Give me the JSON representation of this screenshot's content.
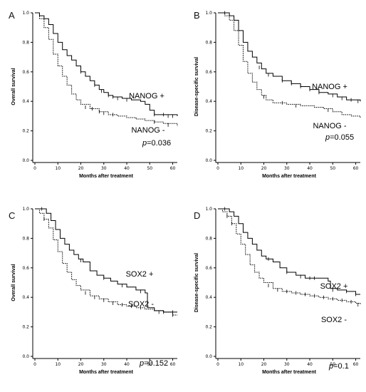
{
  "chart_data": [
    {
      "panel": "A",
      "type": "line",
      "xlabel": "Months after treatment",
      "ylabel": "Overall survival",
      "xlim": [
        0,
        62
      ],
      "ylim": [
        0,
        1.0
      ],
      "xticks": [
        0,
        10,
        20,
        30,
        40,
        50,
        60
      ],
      "yticks": [
        "0.0",
        "0.2",
        "0.4",
        "0.6",
        "0.8",
        "1.0"
      ],
      "p_value": "=0.036",
      "series": [
        {
          "name": "NANOG +",
          "style": "solid",
          "points": [
            [
              0,
              1.0
            ],
            [
              2,
              0.98
            ],
            [
              4,
              0.96
            ],
            [
              6,
              0.92
            ],
            [
              8,
              0.86
            ],
            [
              10,
              0.8
            ],
            [
              12,
              0.75
            ],
            [
              14,
              0.71
            ],
            [
              16,
              0.68
            ],
            [
              18,
              0.64
            ],
            [
              20,
              0.6
            ],
            [
              22,
              0.57
            ],
            [
              24,
              0.54
            ],
            [
              26,
              0.51
            ],
            [
              28,
              0.48
            ],
            [
              30,
              0.46
            ],
            [
              32,
              0.44
            ],
            [
              34,
              0.43
            ],
            [
              38,
              0.42
            ],
            [
              42,
              0.41
            ],
            [
              46,
              0.4
            ],
            [
              48,
              0.38
            ],
            [
              50,
              0.34
            ],
            [
              52,
              0.31
            ],
            [
              62,
              0.3
            ]
          ],
          "censors": [
            [
              20,
              0.6
            ],
            [
              26,
              0.51
            ],
            [
              29,
              0.47
            ],
            [
              32,
              0.44
            ],
            [
              34,
              0.43
            ],
            [
              36,
              0.42
            ],
            [
              40,
              0.41
            ],
            [
              52,
              0.31
            ],
            [
              56,
              0.31
            ],
            [
              58,
              0.3
            ],
            [
              60,
              0.3
            ]
          ]
        },
        {
          "name": "NANOG -",
          "style": "dotted",
          "points": [
            [
              0,
              1.0
            ],
            [
              2,
              0.96
            ],
            [
              4,
              0.9
            ],
            [
              6,
              0.82
            ],
            [
              8,
              0.72
            ],
            [
              10,
              0.64
            ],
            [
              12,
              0.57
            ],
            [
              14,
              0.51
            ],
            [
              16,
              0.45
            ],
            [
              18,
              0.41
            ],
            [
              20,
              0.38
            ],
            [
              24,
              0.35
            ],
            [
              28,
              0.33
            ],
            [
              32,
              0.31
            ],
            [
              36,
              0.3
            ],
            [
              40,
              0.29
            ],
            [
              44,
              0.28
            ],
            [
              48,
              0.27
            ],
            [
              52,
              0.26
            ],
            [
              56,
              0.25
            ],
            [
              62,
              0.23
            ]
          ],
          "censors": [
            [
              22,
              0.36
            ],
            [
              25,
              0.35
            ],
            [
              28,
              0.33
            ],
            [
              30,
              0.32
            ],
            [
              34,
              0.31
            ],
            [
              52,
              0.26
            ],
            [
              58,
              0.24
            ]
          ]
        }
      ]
    },
    {
      "panel": "B",
      "type": "line",
      "xlabel": "Months after treatment",
      "ylabel": "Disease-specific survival",
      "xlim": [
        0,
        62
      ],
      "ylim": [
        0,
        1.0
      ],
      "xticks": [
        0,
        10,
        20,
        30,
        40,
        50,
        60
      ],
      "yticks": [
        "0.0",
        "0.2",
        "0.4",
        "0.6",
        "0.8",
        "1.0"
      ],
      "p_value": "=0.055",
      "series": [
        {
          "name": "NANOG +",
          "style": "solid",
          "points": [
            [
              0,
              1.0
            ],
            [
              3,
              1.0
            ],
            [
              5,
              0.98
            ],
            [
              7,
              0.95
            ],
            [
              9,
              0.88
            ],
            [
              11,
              0.8
            ],
            [
              13,
              0.74
            ],
            [
              15,
              0.7
            ],
            [
              17,
              0.66
            ],
            [
              19,
              0.62
            ],
            [
              21,
              0.59
            ],
            [
              24,
              0.57
            ],
            [
              28,
              0.54
            ],
            [
              32,
              0.52
            ],
            [
              36,
              0.5
            ],
            [
              40,
              0.48
            ],
            [
              44,
              0.46
            ],
            [
              48,
              0.45
            ],
            [
              52,
              0.43
            ],
            [
              56,
              0.41
            ],
            [
              62,
              0.4
            ]
          ],
          "censors": [
            [
              3,
              1.0
            ],
            [
              18,
              0.63
            ],
            [
              22,
              0.58
            ],
            [
              28,
              0.54
            ],
            [
              32,
              0.52
            ],
            [
              36,
              0.5
            ],
            [
              40,
              0.48
            ],
            [
              44,
              0.46
            ],
            [
              50,
              0.44
            ],
            [
              54,
              0.42
            ],
            [
              58,
              0.41
            ],
            [
              61,
              0.4
            ]
          ]
        },
        {
          "name": "NANOG -",
          "style": "dotted",
          "points": [
            [
              0,
              1.0
            ],
            [
              3,
              0.98
            ],
            [
              5,
              0.95
            ],
            [
              7,
              0.88
            ],
            [
              9,
              0.78
            ],
            [
              11,
              0.67
            ],
            [
              13,
              0.59
            ],
            [
              15,
              0.53
            ],
            [
              17,
              0.48
            ],
            [
              19,
              0.44
            ],
            [
              21,
              0.41
            ],
            [
              24,
              0.39
            ],
            [
              30,
              0.38
            ],
            [
              36,
              0.37
            ],
            [
              42,
              0.36
            ],
            [
              46,
              0.35
            ],
            [
              50,
              0.33
            ],
            [
              54,
              0.31
            ],
            [
              58,
              0.3
            ],
            [
              62,
              0.29
            ]
          ],
          "censors": [
            [
              20,
              0.43
            ],
            [
              28,
              0.39
            ],
            [
              34,
              0.37
            ],
            [
              48,
              0.34
            ]
          ]
        }
      ]
    },
    {
      "panel": "C",
      "type": "line",
      "xlabel": "Months after treatment",
      "ylabel": "Overall survival",
      "xlim": [
        0,
        62
      ],
      "ylim": [
        0,
        1.0
      ],
      "xticks": [
        0,
        10,
        20,
        30,
        40,
        50,
        60
      ],
      "yticks": [
        "0.0",
        "0.2",
        "0.4",
        "0.6",
        "0.8",
        "1.0"
      ],
      "p_value": "=0.152",
      "series": [
        {
          "name": "SOX2 +",
          "style": "solid",
          "points": [
            [
              0,
              1.0
            ],
            [
              3,
              1.0
            ],
            [
              5,
              0.97
            ],
            [
              7,
              0.92
            ],
            [
              9,
              0.86
            ],
            [
              11,
              0.8
            ],
            [
              13,
              0.76
            ],
            [
              15,
              0.72
            ],
            [
              17,
              0.69
            ],
            [
              19,
              0.66
            ],
            [
              21,
              0.64
            ],
            [
              24,
              0.58
            ],
            [
              27,
              0.55
            ],
            [
              30,
              0.53
            ],
            [
              33,
              0.51
            ],
            [
              36,
              0.49
            ],
            [
              40,
              0.47
            ],
            [
              44,
              0.45
            ],
            [
              48,
              0.43
            ],
            [
              49,
              0.33
            ],
            [
              52,
              0.31
            ],
            [
              56,
              0.3
            ],
            [
              62,
              0.3
            ]
          ],
          "censors": [
            [
              3,
              1.0
            ],
            [
              20,
              0.65
            ],
            [
              30,
              0.53
            ],
            [
              38,
              0.48
            ],
            [
              46,
              0.44
            ],
            [
              56,
              0.3
            ],
            [
              60,
              0.3
            ]
          ]
        },
        {
          "name": "SOX2 -",
          "style": "dotted",
          "points": [
            [
              0,
              1.0
            ],
            [
              2,
              0.97
            ],
            [
              4,
              0.93
            ],
            [
              6,
              0.87
            ],
            [
              8,
              0.79
            ],
            [
              10,
              0.71
            ],
            [
              12,
              0.63
            ],
            [
              14,
              0.57
            ],
            [
              16,
              0.52
            ],
            [
              18,
              0.48
            ],
            [
              20,
              0.45
            ],
            [
              24,
              0.41
            ],
            [
              28,
              0.39
            ],
            [
              32,
              0.37
            ],
            [
              36,
              0.35
            ],
            [
              40,
              0.34
            ],
            [
              44,
              0.33
            ],
            [
              48,
              0.32
            ],
            [
              52,
              0.31
            ],
            [
              56,
              0.3
            ],
            [
              60,
              0.28
            ],
            [
              62,
              0.28
            ]
          ],
          "censors": [
            [
              4,
              0.93
            ],
            [
              22,
              0.43
            ],
            [
              26,
              0.4
            ],
            [
              30,
              0.38
            ],
            [
              34,
              0.36
            ],
            [
              38,
              0.35
            ],
            [
              42,
              0.34
            ],
            [
              46,
              0.33
            ],
            [
              54,
              0.3
            ],
            [
              60,
              0.28
            ]
          ]
        }
      ]
    },
    {
      "panel": "D",
      "type": "line",
      "xlabel": "Months after treatment",
      "ylabel": "Disease-specific survival",
      "xlim": [
        0,
        62
      ],
      "ylim": [
        0,
        1.0
      ],
      "xticks": [
        0,
        10,
        20,
        30,
        40,
        50,
        60
      ],
      "yticks": [
        "0.0",
        "0.2",
        "0.4",
        "0.6",
        "0.8",
        "1.0"
      ],
      "p_value": "=0.1",
      "series": [
        {
          "name": "SOX2 +",
          "style": "solid",
          "points": [
            [
              0,
              1.0
            ],
            [
              3,
              1.0
            ],
            [
              5,
              0.98
            ],
            [
              7,
              0.95
            ],
            [
              9,
              0.9
            ],
            [
              11,
              0.84
            ],
            [
              13,
              0.8
            ],
            [
              15,
              0.76
            ],
            [
              17,
              0.72
            ],
            [
              19,
              0.68
            ],
            [
              21,
              0.66
            ],
            [
              24,
              0.64
            ],
            [
              27,
              0.6
            ],
            [
              30,
              0.57
            ],
            [
              34,
              0.55
            ],
            [
              38,
              0.53
            ],
            [
              44,
              0.53
            ],
            [
              48,
              0.51
            ],
            [
              49,
              0.46
            ],
            [
              52,
              0.45
            ],
            [
              56,
              0.44
            ],
            [
              60,
              0.42
            ],
            [
              62,
              0.42
            ]
          ],
          "censors": [
            [
              3,
              1.0
            ],
            [
              22,
              0.66
            ],
            [
              30,
              0.57
            ],
            [
              36,
              0.54
            ],
            [
              40,
              0.53
            ],
            [
              42,
              0.53
            ],
            [
              50,
              0.45
            ],
            [
              56,
              0.44
            ],
            [
              60,
              0.42
            ]
          ]
        },
        {
          "name": "SOX2 -",
          "style": "dotted",
          "points": [
            [
              0,
              1.0
            ],
            [
              2,
              0.98
            ],
            [
              4,
              0.95
            ],
            [
              6,
              0.9
            ],
            [
              8,
              0.83
            ],
            [
              10,
              0.76
            ],
            [
              12,
              0.69
            ],
            [
              14,
              0.62
            ],
            [
              16,
              0.57
            ],
            [
              18,
              0.53
            ],
            [
              20,
              0.5
            ],
            [
              24,
              0.46
            ],
            [
              28,
              0.44
            ],
            [
              32,
              0.43
            ],
            [
              36,
              0.42
            ],
            [
              40,
              0.41
            ],
            [
              44,
              0.4
            ],
            [
              48,
              0.39
            ],
            [
              52,
              0.38
            ],
            [
              56,
              0.37
            ],
            [
              60,
              0.36
            ],
            [
              62,
              0.35
            ]
          ],
          "censors": [
            [
              4,
              0.95
            ],
            [
              6,
              0.9
            ],
            [
              22,
              0.48
            ],
            [
              26,
              0.45
            ],
            [
              30,
              0.44
            ],
            [
              34,
              0.43
            ],
            [
              38,
              0.42
            ],
            [
              42,
              0.41
            ],
            [
              46,
              0.4
            ],
            [
              50,
              0.39
            ],
            [
              54,
              0.38
            ],
            [
              58,
              0.37
            ],
            [
              61,
              0.35
            ]
          ]
        }
      ]
    }
  ]
}
